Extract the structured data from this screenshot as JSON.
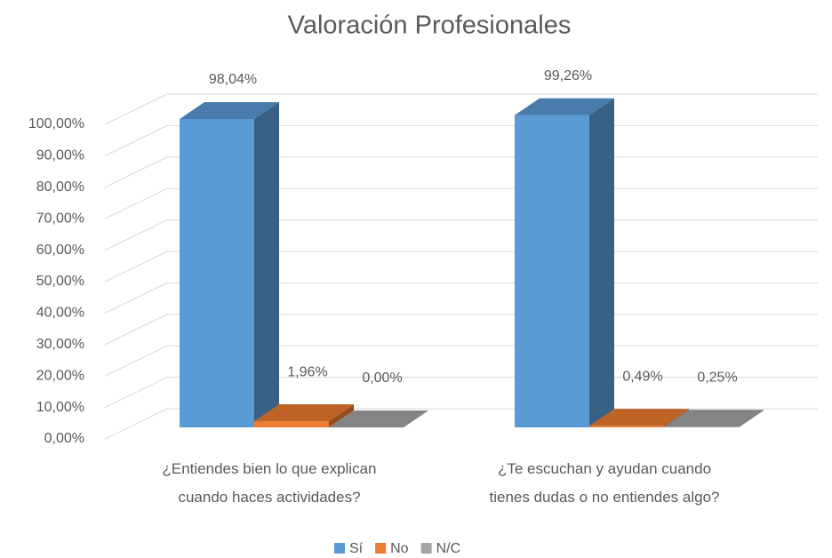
{
  "chart_data": {
    "type": "bar3d",
    "title": "Valoración Profesionales",
    "categories": [
      "¿Entiendes bien lo que explican\ncuando haces actividades?",
      "¿Te escuchan y ayudan cuando\ntienes dudas o no entiendes algo?"
    ],
    "series": [
      {
        "name": "Sí",
        "color": "#5b9bd5",
        "values": [
          98.04,
          99.26
        ],
        "value_labels": [
          "98,04%",
          "99,26%"
        ]
      },
      {
        "name": "No",
        "color": "#ed7d31",
        "values": [
          1.96,
          0.49
        ],
        "value_labels": [
          "1,96%",
          "0,49%"
        ]
      },
      {
        "name": "N/C",
        "color": "#a5a5a5",
        "values": [
          0,
          0.25
        ],
        "value_labels": [
          "0,00%",
          "0,25%"
        ]
      }
    ],
    "ylim": [
      0,
      100
    ],
    "yticks": [
      {
        "value": 0,
        "label": "0,00%"
      },
      {
        "value": 10,
        "label": "10,00%"
      },
      {
        "value": 20,
        "label": "20,00%"
      },
      {
        "value": 30,
        "label": "30,00%"
      },
      {
        "value": 40,
        "label": "40,00%"
      },
      {
        "value": 50,
        "label": "50,00%"
      },
      {
        "value": 60,
        "label": "60,00%"
      },
      {
        "value": 70,
        "label": "70,00%"
      },
      {
        "value": 80,
        "label": "80,00%"
      },
      {
        "value": 90,
        "label": "90,00%"
      },
      {
        "value": 100,
        "label": "100,00%"
      }
    ],
    "grid": true,
    "legend": "bottom"
  }
}
